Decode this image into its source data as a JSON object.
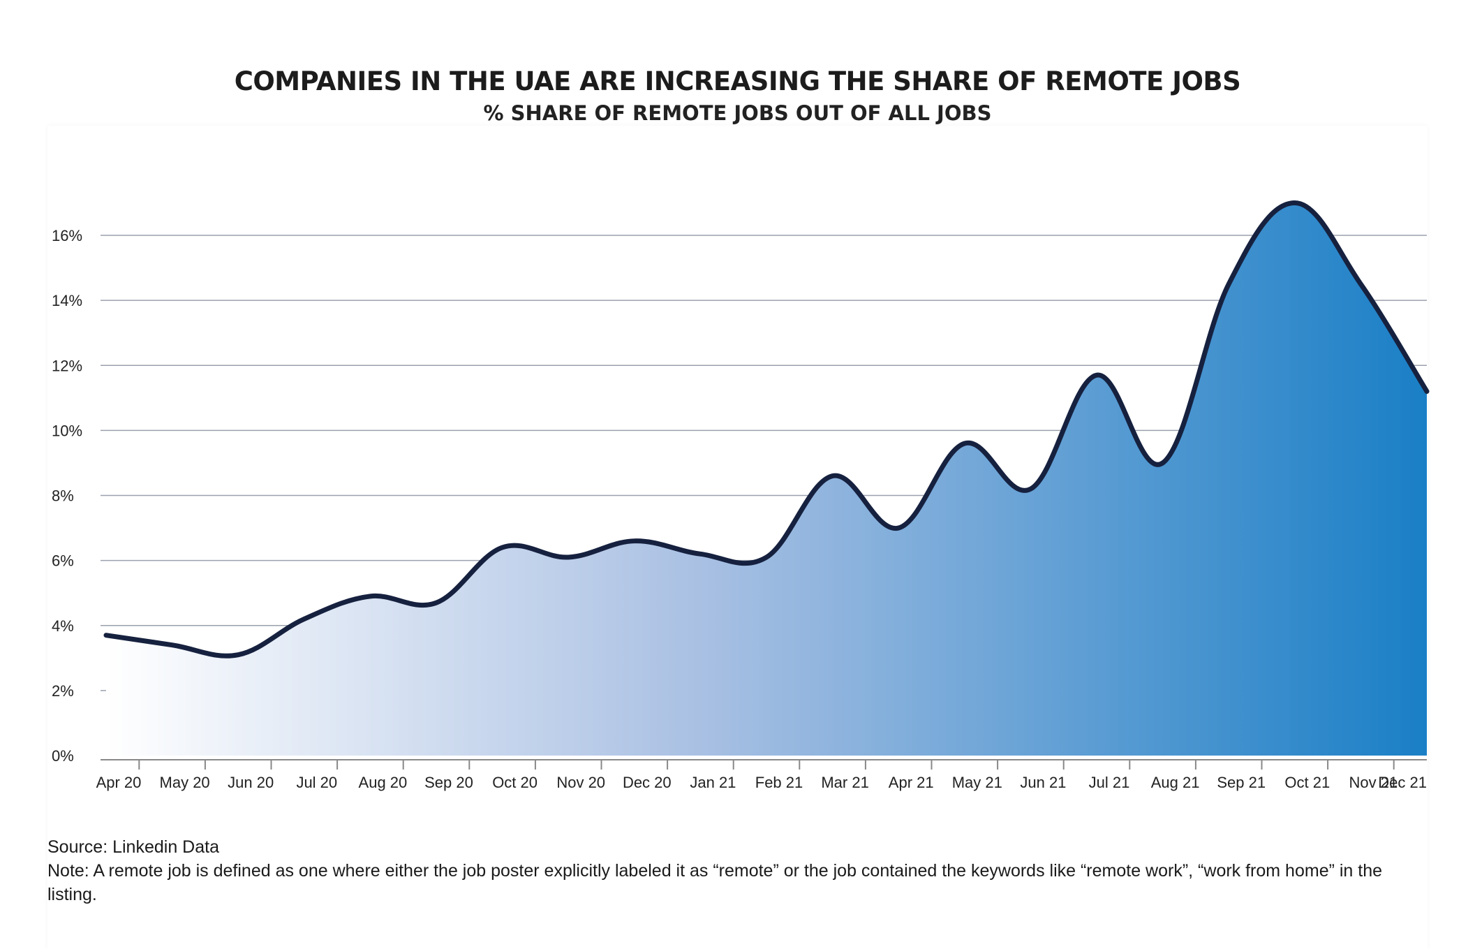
{
  "header": {
    "title": "COMPANIES IN THE UAE ARE INCREASING THE SHARE OF REMOTE JOBS",
    "subtitle": "% SHARE OF REMOTE JOBS OUT OF ALL JOBS"
  },
  "footer": {
    "source": "Source: Linkedin Data",
    "note": "Note: A remote job is defined as one where either the job poster explicitly labeled it as “remote” or the job contained the keywords like “remote work”, “work from home” in the listing."
  },
  "colors": {
    "line": "#16213f",
    "fill_start": "#ffffff",
    "fill_end": "#1a7fc6",
    "grid": "#9aa0ad",
    "axis": "#888888"
  },
  "chart_data": {
    "type": "area",
    "title": "COMPANIES IN THE UAE ARE INCREASING THE SHARE OF REMOTE JOBS",
    "subtitle": "% SHARE OF REMOTE JOBS OUT OF ALL JOBS",
    "xlabel": "",
    "ylabel": "",
    "ylim": [
      0,
      16
    ],
    "yticks": [
      0,
      2,
      4,
      6,
      8,
      10,
      12,
      14,
      16
    ],
    "ytick_labels": [
      "0%",
      "2%",
      "4%",
      "6%",
      "8%",
      "10%",
      "12%",
      "14%",
      "16%"
    ],
    "grid": true,
    "legend": "none",
    "categories": [
      "Apr 20",
      "May 20",
      "Jun 20",
      "Jul 20",
      "Aug 20",
      "Sep 20",
      "Oct 20",
      "Nov 20",
      "Dec 20",
      "Jan 21",
      "Feb 21",
      "Mar 21",
      "Apr 21",
      "May 21",
      "Jun 21",
      "Jul 21",
      "Aug 21",
      "Sep 21",
      "Oct 21",
      "Nov 21",
      "Dec 21"
    ],
    "series": [
      {
        "values": [
          3.7,
          3.4,
          3.1,
          4.2,
          4.9,
          4.7,
          6.4,
          6.1,
          6.6,
          6.2,
          6.1,
          8.6,
          7.0,
          9.6,
          8.2,
          11.7,
          9.0,
          14.5,
          17.0,
          14.5,
          11.2
        ]
      }
    ]
  }
}
